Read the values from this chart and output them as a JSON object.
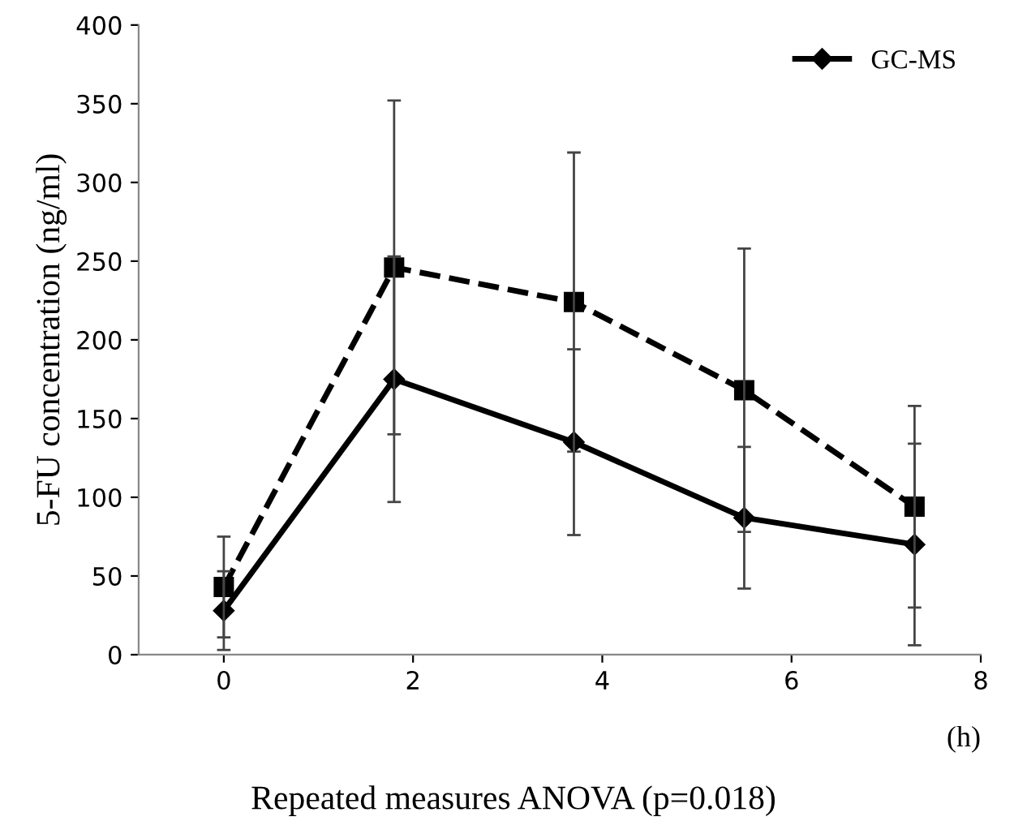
{
  "chart_data": {
    "type": "line",
    "ylabel": "5-FU concentration (ng/ml)",
    "xlabel": "(h)",
    "annotations": [
      "Repeated measures ANOVA (p=0.018)"
    ],
    "x": [
      0,
      1.8,
      3.7,
      5.5,
      7.3
    ],
    "series": [
      {
        "color": "#000000",
        "line_style": "dashed",
        "marker": "square",
        "values": [
          43,
          246,
          224,
          168,
          94
        ],
        "errors": [
          32,
          106,
          95,
          90,
          64
        ]
      },
      {
        "name": "GC-MS",
        "color": "#000000",
        "line_style": "solid",
        "marker": "diamond",
        "values": [
          28,
          175,
          135,
          87,
          70
        ],
        "errors": [
          25,
          78,
          59,
          45,
          64
        ]
      }
    ],
    "xlim": [
      -0.9,
      8
    ],
    "xticks": [
      0,
      2,
      4,
      6,
      8
    ],
    "ylim": [
      0,
      400
    ],
    "yticks": [
      0,
      50,
      100,
      150,
      200,
      250,
      300,
      350,
      400
    ],
    "grid": false,
    "legend": "top right"
  }
}
